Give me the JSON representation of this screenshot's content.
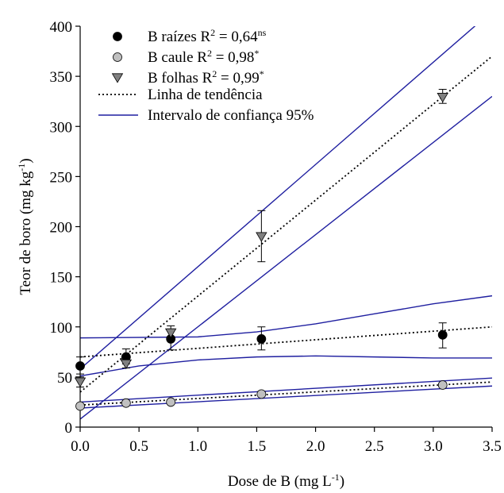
{
  "chart_data": {
    "type": "scatter",
    "xlabel": {
      "main": "Dose de B (mg L",
      "sup": "-1",
      "tail": ")"
    },
    "ylabel": {
      "main": "Teor de boro (mg kg",
      "sup": "-1",
      "tail": ")"
    },
    "xlim": [
      0,
      3.5
    ],
    "ylim": [
      0,
      400
    ],
    "x_ticks": [
      "0.0",
      "0.5",
      "1.0",
      "1.5",
      "2.0",
      "2.5",
      "3.0",
      "3.5"
    ],
    "y_ticks": [
      "0",
      "50",
      "100",
      "150",
      "200",
      "250",
      "300",
      "350",
      "400"
    ],
    "x": [
      0,
      0.39,
      0.77,
      1.54,
      3.08
    ],
    "series": [
      {
        "name": {
          "main": "B raízes R",
          "sup1": "2",
          "mid": " = 0,64",
          "sup2": "ns"
        },
        "marker": "circle",
        "fill": "#000000",
        "values": [
          61,
          70,
          88,
          88,
          92
        ],
        "err_low": [
          53,
          63,
          77,
          77,
          79
        ],
        "err_high": [
          70,
          78,
          98,
          100,
          104
        ],
        "trend": [
          70,
          100
        ],
        "ci_upper": [
          [
            0,
            89
          ],
          [
            1.0,
            90
          ],
          [
            1.5,
            95
          ],
          [
            2.0,
            103
          ],
          [
            2.5,
            113
          ],
          [
            3.0,
            123
          ],
          [
            3.5,
            131
          ]
        ],
        "ci_lower": [
          [
            0,
            51
          ],
          [
            0.5,
            61
          ],
          [
            1.0,
            67
          ],
          [
            1.5,
            70
          ],
          [
            2.0,
            71
          ],
          [
            2.5,
            70
          ],
          [
            3.0,
            69
          ],
          [
            3.5,
            69
          ]
        ]
      },
      {
        "name": {
          "main": "B caule R",
          "sup1": "2",
          "mid": " = 0,98",
          "sup2": "*"
        },
        "marker": "circle",
        "fill": "#c0c0c0",
        "values": [
          21,
          24,
          25,
          33,
          42
        ],
        "err_low": [
          21,
          24,
          25,
          33,
          42
        ],
        "err_high": [
          21,
          24,
          25,
          33,
          42
        ],
        "trend": [
          22,
          45
        ],
        "ci_upper": [
          [
            0,
            25
          ],
          [
            3.5,
            49
          ]
        ],
        "ci_lower": [
          [
            0,
            19
          ],
          [
            3.5,
            41
          ]
        ]
      },
      {
        "name": {
          "main": "B folhas R",
          "sup1": "2",
          "mid": " = 0,99",
          "sup2": "*"
        },
        "marker": "triangle-down",
        "fill": "#808080",
        "values": [
          45,
          63,
          94,
          190,
          329
        ],
        "err_low": [
          40,
          59,
          88,
          165,
          323
        ],
        "err_high": [
          50,
          67,
          101,
          216,
          337
        ],
        "trend": [
          35,
          370
        ],
        "ci_upper": [
          [
            0,
            58
          ],
          [
            3.5,
            415
          ]
        ],
        "ci_lower": [
          [
            0,
            8
          ],
          [
            3.5,
            330
          ]
        ]
      }
    ],
    "legend": {
      "position": "top-left",
      "trend_label": "Linha de tendência",
      "ci_label": "Intervalo de confiança 95%"
    },
    "colors": {
      "trend": "#000000",
      "ci": "#1f1fa0"
    },
    "grid": false
  }
}
